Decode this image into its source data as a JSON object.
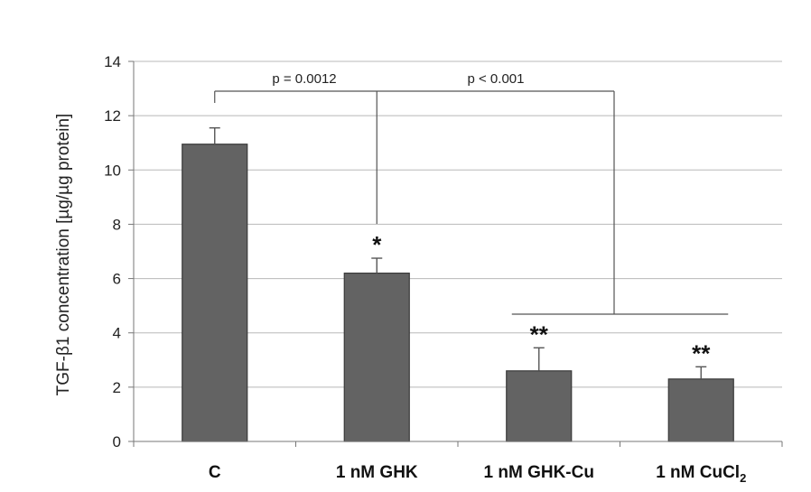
{
  "chart_data": {
    "type": "bar",
    "title": "",
    "xlabel": "",
    "ylabel": "TGF-β1 concentration [µg/µg protein]",
    "ylim": [
      0,
      14
    ],
    "yticks": [
      0,
      2,
      4,
      6,
      8,
      10,
      12,
      14
    ],
    "grid": true,
    "categories": [
      {
        "main": "C",
        "sub": ""
      },
      {
        "main": "1 nM GHK",
        "sub": ""
      },
      {
        "main": "1 nM GHK-Cu",
        "sub": ""
      },
      {
        "main": "1 nM CuCl",
        "sub": "2"
      }
    ],
    "values": [
      10.95,
      6.2,
      2.6,
      2.3
    ],
    "error_upper": [
      11.55,
      6.75,
      3.45,
      2.75
    ],
    "significance": [
      "",
      "*",
      "**",
      "**"
    ],
    "comparisons": [
      {
        "label": "p = 0.0012",
        "from": "C",
        "to": [
          "1 nM GHK"
        ]
      },
      {
        "label": "p < 0.001",
        "from": "C",
        "to": [
          "1 nM GHK-Cu",
          "1 nM CuCl2"
        ]
      }
    ],
    "colors": {
      "bar": "#636363",
      "bar_edge": "#3a3a3a",
      "grid": "#b8b8b8",
      "axis": "#777777",
      "bracket": "#555555"
    }
  }
}
